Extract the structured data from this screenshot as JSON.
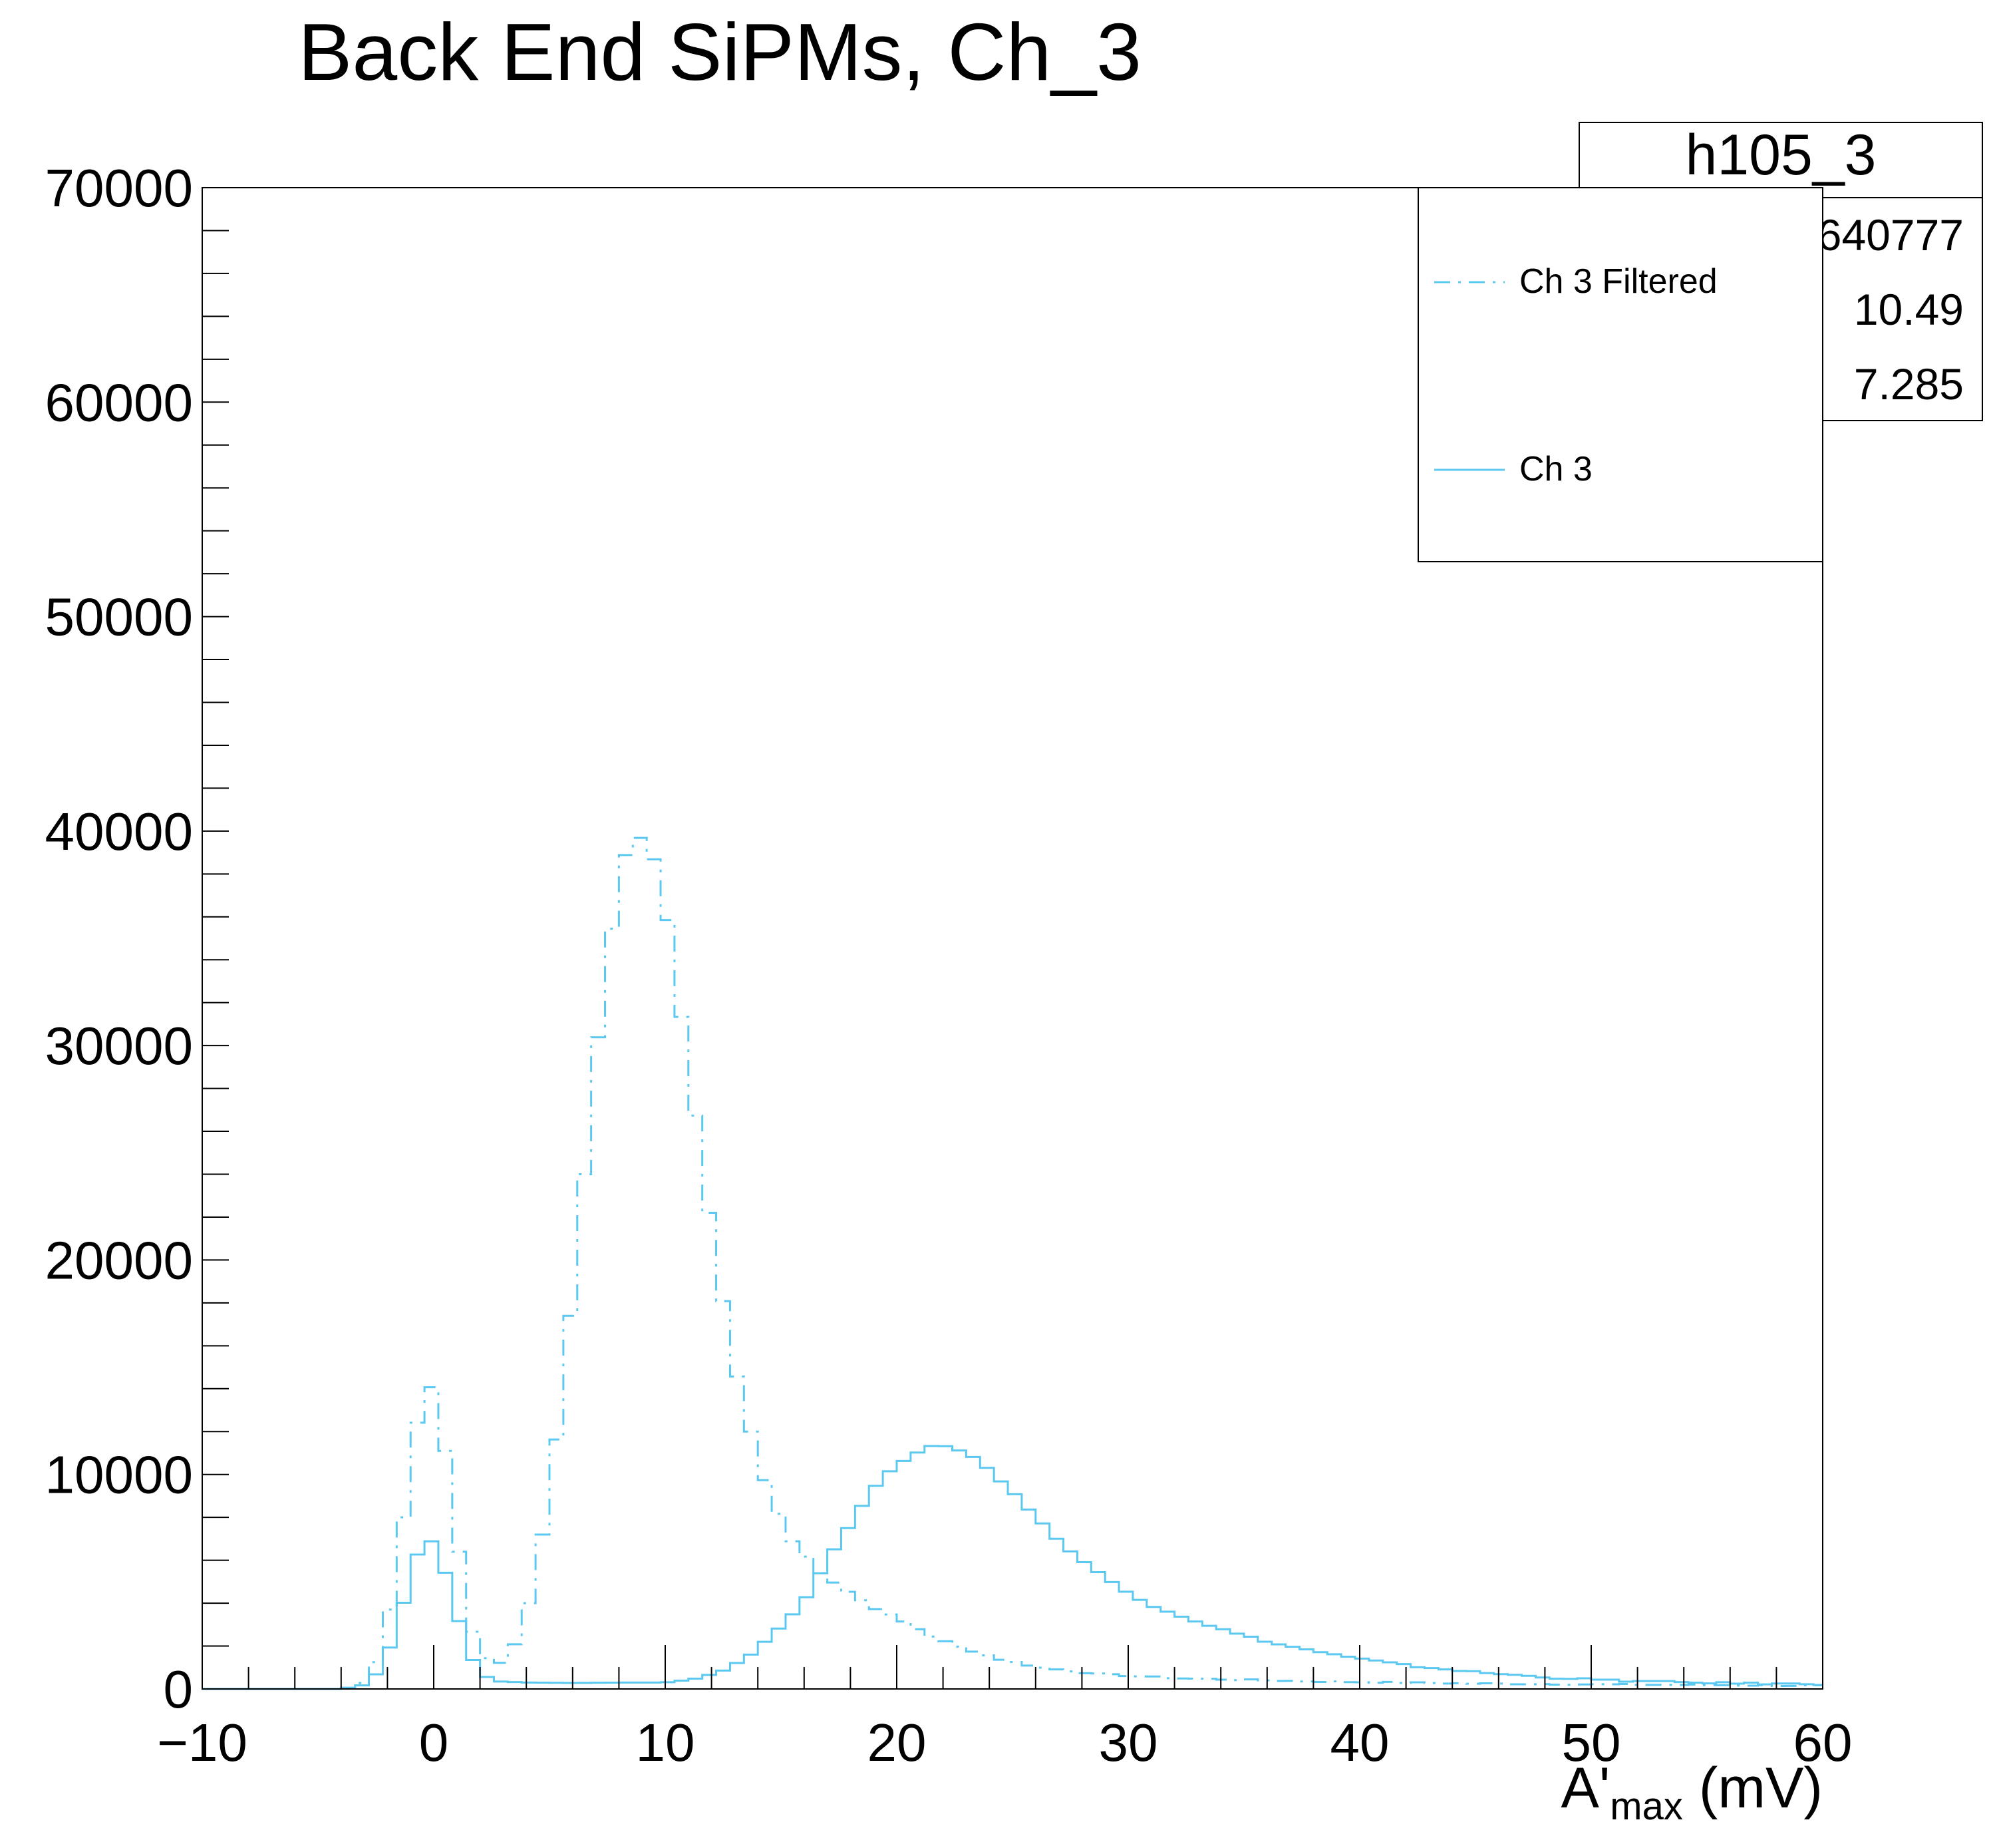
{
  "chart_data": {
    "type": "histogram",
    "title": "Back End SiPMs, Ch_3",
    "xlabel_main": "A'",
    "xlabel_sub": "max",
    "xlabel_unit": " (mV)",
    "ylabel": "",
    "xlim": [
      -10,
      60
    ],
    "ylim": [
      0,
      70000
    ],
    "bin_width": 0.6,
    "x_ticks": [
      -10,
      0,
      10,
      20,
      30,
      40,
      50,
      60
    ],
    "x_tick_labels": [
      "−10",
      "0",
      "10",
      "20",
      "30",
      "40",
      "50",
      "60"
    ],
    "y_ticks": [
      0,
      10000,
      20000,
      30000,
      40000,
      50000,
      60000,
      70000
    ],
    "y_tick_labels": [
      "0",
      "10000",
      "20000",
      "30000",
      "40000",
      "50000",
      "60000",
      "70000"
    ],
    "series": [
      {
        "name": "Ch 3 Filtered",
        "style": "dashdot",
        "color": "#5bc8f0",
        "anchors": [
          [
            -10,
            0
          ],
          [
            -4,
            0
          ],
          [
            -3.2,
            150
          ],
          [
            -2.6,
            900
          ],
          [
            -2,
            3000
          ],
          [
            -1.4,
            7200
          ],
          [
            -0.8,
            12000
          ],
          [
            -0.2,
            14500
          ],
          [
            0.4,
            11900
          ],
          [
            1,
            7100
          ],
          [
            1.6,
            2900
          ],
          [
            2.2,
            1500
          ],
          [
            2.8,
            1100
          ],
          [
            3.4,
            1800
          ],
          [
            4,
            3500
          ],
          [
            4.6,
            6500
          ],
          [
            5.2,
            10700
          ],
          [
            5.8,
            16300
          ],
          [
            6.4,
            22900
          ],
          [
            7,
            29500
          ],
          [
            7.6,
            34800
          ],
          [
            8.2,
            38700
          ],
          [
            8.8,
            39800
          ],
          [
            9.4,
            39100
          ],
          [
            10,
            36600
          ],
          [
            10.6,
            32100
          ],
          [
            11.2,
            27500
          ],
          [
            11.8,
            22900
          ],
          [
            12.4,
            18700
          ],
          [
            13,
            15000
          ],
          [
            13.6,
            12400
          ],
          [
            14.2,
            10000
          ],
          [
            14.8,
            8400
          ],
          [
            15.4,
            7000
          ],
          [
            16,
            6300
          ],
          [
            16.6,
            5500
          ],
          [
            17.8,
            4600
          ],
          [
            19,
            3800
          ],
          [
            20.2,
            3200
          ],
          [
            21.4,
            2500
          ],
          [
            22.6,
            2000
          ],
          [
            24.4,
            1400
          ],
          [
            26.2,
            1000
          ],
          [
            28.6,
            700
          ],
          [
            32,
            500
          ],
          [
            38,
            350
          ],
          [
            45,
            250
          ],
          [
            52,
            200
          ],
          [
            60,
            150
          ]
        ],
        "noise": 60
      },
      {
        "name": "Ch 3",
        "style": "solid",
        "color": "#5bc8f0",
        "anchors": [
          [
            -10,
            0
          ],
          [
            -4,
            0
          ],
          [
            -3.2,
            100
          ],
          [
            -2.6,
            500
          ],
          [
            -2,
            1600
          ],
          [
            -1.4,
            3600
          ],
          [
            -0.8,
            6100
          ],
          [
            -0.2,
            7100
          ],
          [
            0.4,
            5800
          ],
          [
            1,
            3500
          ],
          [
            1.6,
            1500
          ],
          [
            2.2,
            600
          ],
          [
            2.8,
            350
          ],
          [
            4,
            300
          ],
          [
            6,
            280
          ],
          [
            8.2,
            300
          ],
          [
            10,
            300
          ],
          [
            11.2,
            450
          ],
          [
            12.4,
            800
          ],
          [
            13.6,
            1500
          ],
          [
            14.8,
            2700
          ],
          [
            15.4,
            3400
          ],
          [
            16,
            4100
          ],
          [
            16.6,
            5200
          ],
          [
            17.2,
            6400
          ],
          [
            17.8,
            7300
          ],
          [
            18.4,
            8400
          ],
          [
            19,
            9300
          ],
          [
            19.6,
            10100
          ],
          [
            20.2,
            10600
          ],
          [
            20.8,
            11000
          ],
          [
            21.4,
            11300
          ],
          [
            22,
            11300
          ],
          [
            22.6,
            11200
          ],
          [
            23.2,
            10900
          ],
          [
            23.8,
            10400
          ],
          [
            24.4,
            9800
          ],
          [
            25,
            9200
          ],
          [
            25.6,
            8500
          ],
          [
            26.2,
            7800
          ],
          [
            27.4,
            6500
          ],
          [
            28.6,
            5500
          ],
          [
            29.8,
            4600
          ],
          [
            31,
            3900
          ],
          [
            32.8,
            3200
          ],
          [
            34.6,
            2600
          ],
          [
            36.4,
            2100
          ],
          [
            39.4,
            1500
          ],
          [
            42.4,
            1050
          ],
          [
            45.4,
            750
          ],
          [
            48.4,
            520
          ],
          [
            51.4,
            380
          ],
          [
            54.4,
            300
          ],
          [
            57.4,
            250
          ],
          [
            60,
            220
          ]
        ],
        "noise": 80
      }
    ],
    "legend": {
      "placement": "top-right",
      "entries": [
        {
          "label": "Ch 3 Filtered",
          "style": "dashdot"
        },
        {
          "label": "Ch 3",
          "style": "solid"
        }
      ]
    },
    "stats_box": {
      "name": "h105_3",
      "values": [
        "640777",
        "10.49",
        "7.285"
      ]
    },
    "grid": false
  }
}
